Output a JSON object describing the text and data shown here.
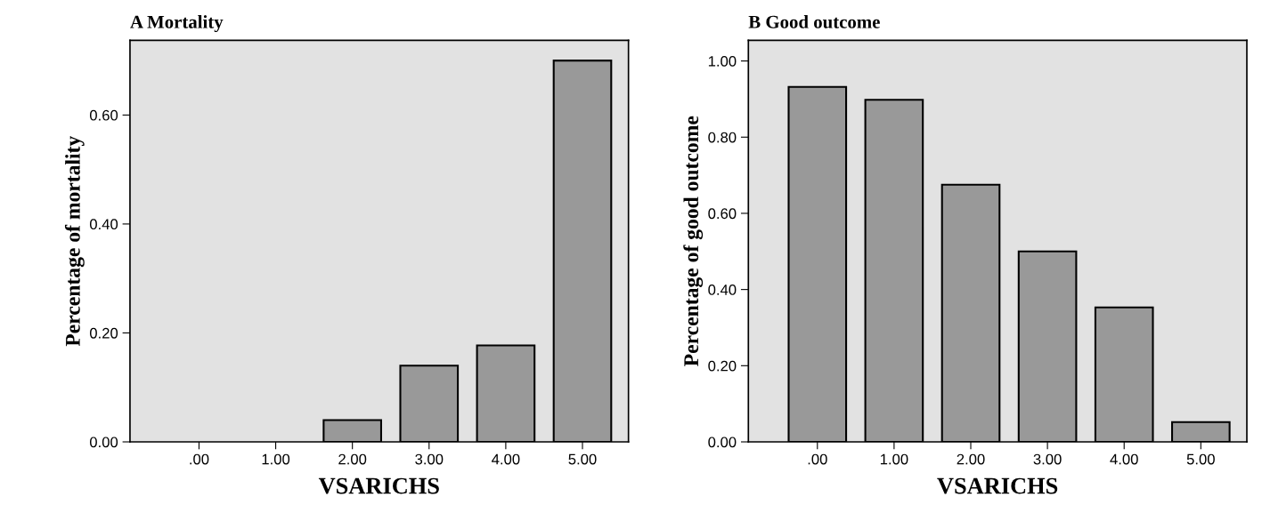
{
  "chart_data": [
    {
      "type": "bar",
      "title": "A Mortality",
      "xlabel": "VSARICHS",
      "ylabel": "Percentage of mortality",
      "categories": [
        ".00",
        "1.00",
        "2.00",
        "3.00",
        "4.00",
        "5.00"
      ],
      "values": [
        0,
        0,
        0.04,
        0.14,
        0.177,
        0.7
      ],
      "color": "#999999",
      "ylim": [
        0,
        0.737
      ],
      "yticks": [
        {
          "value": 0,
          "label": "0.00"
        },
        {
          "value": 0.2,
          "label": "0.20"
        },
        {
          "value": 0.4,
          "label": "0.40"
        },
        {
          "value": 0.6,
          "label": "0.60"
        }
      ],
      "grid": false
    },
    {
      "type": "bar",
      "title": "B Good outcome",
      "xlabel": "VSARICHS",
      "ylabel": "Percentage of good outcome",
      "categories": [
        ".00",
        "1.00",
        "2.00",
        "3.00",
        "4.00",
        "5.00"
      ],
      "values": [
        0.932,
        0.898,
        0.675,
        0.5,
        0.353,
        0.052
      ],
      "color": "#999999",
      "ylim": [
        0,
        1.054
      ],
      "yticks": [
        {
          "value": 0,
          "label": "0.00"
        },
        {
          "value": 0.2,
          "label": "0.20"
        },
        {
          "value": 0.4,
          "label": "0.40"
        },
        {
          "value": 0.6,
          "label": "0.60"
        },
        {
          "value": 0.8,
          "label": "0.80"
        },
        {
          "value": 1.0,
          "label": "1.00"
        }
      ],
      "grid": false
    }
  ]
}
